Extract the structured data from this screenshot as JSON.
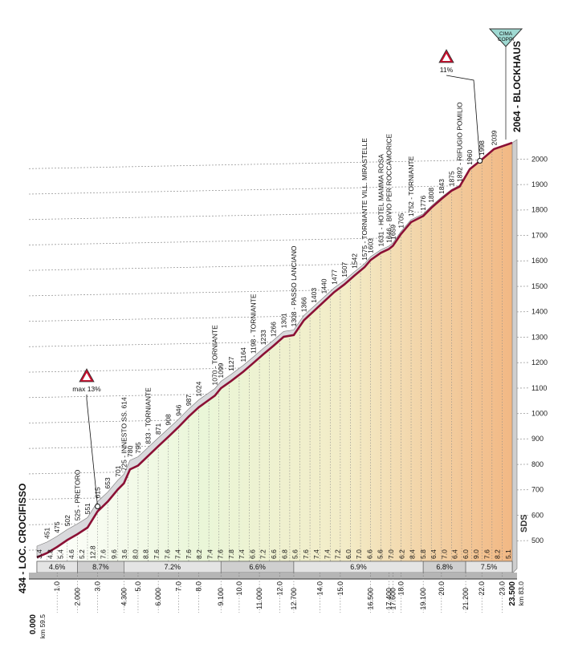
{
  "chart_data": {
    "type": "area",
    "start_name": "434 - LOC. CROCIFISSO",
    "finish_name": "2064 - BLOCKHAUS",
    "summit_badge": "CIMA COPPI",
    "sds_label": "SDS",
    "km_start": "km 59.5",
    "km_end": "km 83.0",
    "start_km_label": "0.000",
    "end_km_label": "23.500",
    "right_axis_ticks": [
      500,
      600,
      700,
      800,
      900,
      1000,
      1100,
      1200,
      1300,
      1400,
      1500,
      1600,
      1700,
      1800,
      1900,
      2000
    ],
    "profile": [
      {
        "km": 0,
        "alt": 434
      },
      {
        "km": 0.5,
        "alt": 451
      },
      {
        "km": 1.0,
        "alt": 475
      },
      {
        "km": 1.5,
        "alt": 502
      },
      {
        "km": 2.0,
        "alt": 525
      },
      {
        "km": 2.5,
        "alt": 551
      },
      {
        "km": 3.0,
        "alt": 615
      },
      {
        "km": 3.5,
        "alt": 653
      },
      {
        "km": 4.0,
        "alt": 701
      },
      {
        "km": 4.3,
        "alt": 725
      },
      {
        "km": 4.6,
        "alt": 780
      },
      {
        "km": 5.0,
        "alt": 795
      },
      {
        "km": 5.5,
        "alt": 833
      },
      {
        "km": 6.0,
        "alt": 871
      },
      {
        "km": 6.5,
        "alt": 908
      },
      {
        "km": 7.0,
        "alt": 946
      },
      {
        "km": 7.5,
        "alt": 987
      },
      {
        "km": 8.0,
        "alt": 1024
      },
      {
        "km": 8.8,
        "alt": 1070
      },
      {
        "km": 9.1,
        "alt": 1099
      },
      {
        "km": 9.6,
        "alt": 1127
      },
      {
        "km": 10.2,
        "alt": 1164
      },
      {
        "km": 10.7,
        "alt": 1198
      },
      {
        "km": 11.2,
        "alt": 1233
      },
      {
        "km": 11.7,
        "alt": 1266
      },
      {
        "km": 12.2,
        "alt": 1301
      },
      {
        "km": 12.7,
        "alt": 1308
      },
      {
        "km": 13.2,
        "alt": 1366
      },
      {
        "km": 13.7,
        "alt": 1403
      },
      {
        "km": 14.2,
        "alt": 1440
      },
      {
        "km": 14.7,
        "alt": 1477
      },
      {
        "km": 15.2,
        "alt": 1507
      },
      {
        "km": 15.7,
        "alt": 1542
      },
      {
        "km": 16.2,
        "alt": 1575
      },
      {
        "km": 16.5,
        "alt": 1603
      },
      {
        "km": 17.0,
        "alt": 1631
      },
      {
        "km": 17.4,
        "alt": 1646
      },
      {
        "km": 17.6,
        "alt": 1659
      },
      {
        "km": 18.0,
        "alt": 1705
      },
      {
        "km": 18.5,
        "alt": 1752
      },
      {
        "km": 19.1,
        "alt": 1776
      },
      {
        "km": 19.5,
        "alt": 1808
      },
      {
        "km": 20.0,
        "alt": 1843
      },
      {
        "km": 20.5,
        "alt": 1875
      },
      {
        "km": 20.9,
        "alt": 1892
      },
      {
        "km": 21.4,
        "alt": 1960
      },
      {
        "km": 22.0,
        "alt": 1998
      },
      {
        "km": 22.6,
        "alt": 2039
      },
      {
        "km": 23.5,
        "alt": 2064
      }
    ],
    "altitude_labels": [
      "451",
      "475",
      "502",
      "525 - PRETORO",
      "551",
      "615",
      "653",
      "701",
      "725 - INNESTO SS. 614",
      "780",
      "795",
      "833 - TORNIANTE",
      "871",
      "908",
      "946",
      "987",
      "1024",
      "1070 - TORNIANTE",
      "1099",
      "1127",
      "1164",
      "1198 - TORNIANTE",
      "1233",
      "1266",
      "1301",
      "1308 - PASSO LANCIANO",
      "1366",
      "1403",
      "1440",
      "1477",
      "1507",
      "1542",
      "1575 - TORNIANTE VILL. MIRASTELLE",
      "1603",
      "1631 - HOTEL MAMMA ROSA",
      "1646 - BIVIO PER ROCCAMORICE",
      "1659",
      "1705",
      "1752 - TORNIANTE",
      "1776",
      "1808",
      "1843",
      "1875",
      "1892 - RIFUGIO POMILIO",
      "1960",
      "1998",
      "2039"
    ],
    "km_ticks": [
      "1.0",
      "2.000",
      "3.0",
      "4.300",
      "5.0",
      "6.000",
      "7.0",
      "8.0",
      "9.100",
      "10.0",
      "11.000",
      "12.0",
      "12.700",
      "14.0",
      "15.0",
      "16.500",
      "17.400",
      "17.600",
      "18.0",
      "19.100",
      "20.0",
      "21.200",
      "22.0",
      "23.0"
    ],
    "gradients": [
      "3.4",
      "4.8",
      "5.4",
      "4.6",
      "5.2",
      "12.8",
      "7.6",
      "9.6",
      "3.6",
      "8.0",
      "8.8",
      "7.6",
      "7.6",
      "7.4",
      "7.6",
      "8.2",
      "7.4",
      "7.6",
      "7.8",
      "7.4",
      "6.6",
      "7.2",
      "6.6",
      "6.8",
      "5.6",
      "7.6",
      "7.4",
      "7.4",
      "7.2",
      "6.0",
      "7.0",
      "6.6",
      "5.6",
      "7.0",
      "6.2",
      "8.4",
      "5.8",
      "6.4",
      "7.0",
      "6.4",
      "6.0",
      "9.0",
      "7.6",
      "8.2",
      "5.1"
    ],
    "average_gradients": [
      {
        "label": "4.6%",
        "from_km": 0,
        "to_km": 2.0
      },
      {
        "label": "8.7%",
        "from_km": 2.0,
        "to_km": 4.3
      },
      {
        "label": "7.2%",
        "from_km": 4.3,
        "to_km": 9.1
      },
      {
        "label": "6.6%",
        "from_km": 9.1,
        "to_km": 12.7
      },
      {
        "label": "6.9%",
        "from_km": 12.7,
        "to_km": 19.1
      },
      {
        "label": "6.8%",
        "from_km": 19.1,
        "to_km": 21.2
      },
      {
        "label": "7.5%",
        "from_km": 21.2,
        "to_km": 23.5
      }
    ],
    "climb_markers": [
      {
        "label": "max 13%",
        "km": 3.0
      },
      {
        "label": "11%",
        "km": 21.9
      }
    ]
  }
}
